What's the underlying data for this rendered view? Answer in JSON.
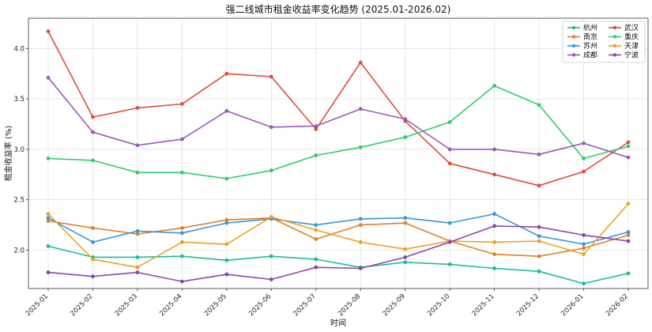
{
  "chart_data": {
    "type": "line",
    "title": "强二线城市租金收益率变化趋势 (2025.01-2026.02)",
    "xlabel": "时间",
    "ylabel": "租金收益率 (%)",
    "ylim": [
      1.62,
      4.3
    ],
    "yticks": [
      "2.0",
      "2.5",
      "3.0",
      "3.5",
      "4.0"
    ],
    "grid": true,
    "legend_position": "top-right",
    "categories": [
      "2025-01",
      "2025-02",
      "2025-03",
      "2025-04",
      "2025-05",
      "2025-06",
      "2025-07",
      "2025-08",
      "2025-09",
      "2025-10",
      "2025-11",
      "2025-12",
      "2026-01",
      "2026-02"
    ],
    "series": [
      {
        "name": "杭州",
        "color": "#1abc9c",
        "values": [
          2.04,
          1.93,
          1.93,
          1.94,
          1.9,
          1.94,
          1.91,
          1.83,
          1.88,
          1.86,
          1.82,
          1.79,
          1.67,
          1.77
        ]
      },
      {
        "name": "武汉",
        "color": "#e04b3a",
        "values": [
          4.17,
          3.32,
          3.41,
          3.45,
          3.75,
          3.72,
          3.2,
          3.86,
          3.28,
          2.86,
          2.75,
          2.64,
          2.78,
          3.07
        ]
      },
      {
        "name": "南京",
        "color": "#e0812a",
        "values": [
          2.29,
          2.22,
          2.16,
          2.22,
          2.3,
          2.32,
          2.11,
          2.25,
          2.27,
          2.09,
          1.96,
          1.94,
          2.02,
          2.15
        ]
      },
      {
        "name": "重庆",
        "color": "#2ecc71",
        "values": [
          2.91,
          2.89,
          2.77,
          2.77,
          2.71,
          2.79,
          2.94,
          3.02,
          3.12,
          3.27,
          3.63,
          3.44,
          2.91,
          3.03
        ]
      },
      {
        "name": "苏州",
        "color": "#3498db",
        "values": [
          2.32,
          2.08,
          2.19,
          2.17,
          2.27,
          2.31,
          2.25,
          2.31,
          2.32,
          2.27,
          2.36,
          2.14,
          2.06,
          2.18
        ]
      },
      {
        "name": "天津",
        "color": "#f0a020",
        "values": [
          2.36,
          1.91,
          1.83,
          2.08,
          2.06,
          2.33,
          2.2,
          2.08,
          2.01,
          2.09,
          2.08,
          2.09,
          1.96,
          2.46
        ]
      },
      {
        "name": "成都",
        "color": "#9b59b6",
        "values": [
          3.71,
          3.17,
          3.04,
          3.1,
          3.38,
          3.22,
          3.23,
          3.4,
          3.3,
          3.0,
          3.0,
          2.95,
          3.06,
          2.92
        ]
      },
      {
        "name": "宁波",
        "color": "#8e44ad",
        "values": [
          1.78,
          1.74,
          1.78,
          1.69,
          1.76,
          1.71,
          1.83,
          1.82,
          1.93,
          2.08,
          2.24,
          2.23,
          2.15,
          2.09
        ]
      }
    ]
  }
}
